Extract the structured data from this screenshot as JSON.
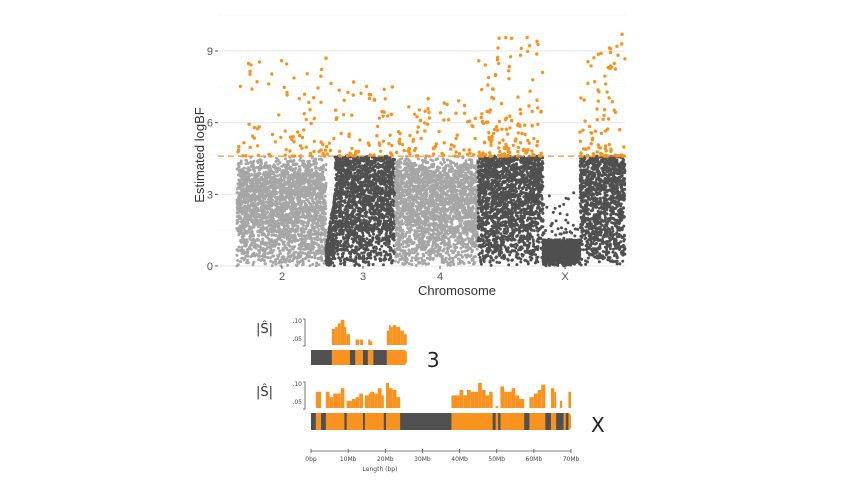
{
  "chart_data": [
    {
      "type": "scatter",
      "subtype": "manhattan",
      "xlabel": "Chromosome",
      "ylabel": "Estimated logBF",
      "ylim": [
        0,
        10
      ],
      "yticks": [
        0,
        3,
        6,
        9
      ],
      "grid": true,
      "threshold": 4.6,
      "colors": {
        "light": "#a6a6a6",
        "dark": "#505050",
        "significant": "#f7931e",
        "threshold_line": "#f7931e"
      },
      "chromosomes": [
        {
          "label": "2",
          "shade": "light",
          "max_logBF": 8.7
        },
        {
          "label": "3",
          "shade": "dark",
          "max_logBF": 7.7
        },
        {
          "label": "4",
          "shade": "light",
          "max_logBF": 7.0
        },
        {
          "label": "X",
          "shade": "dark",
          "max_logBF": 9.7
        }
      ]
    },
    {
      "type": "bar",
      "subtype": "chromosome-track",
      "xlabel": "Length (bp)",
      "ylabel": "|Ŝ|",
      "xlim_mb": [
        0,
        70
      ],
      "xticks": [
        "0bp",
        "10Mb",
        "20Mb",
        "30Mb",
        "40Mb",
        "50Mb",
        "60Mb",
        "70Mb"
      ],
      "ytick_labels": [
        ".10",
        ".05"
      ],
      "ylim": [
        0.03,
        0.105
      ],
      "colors": {
        "selected": "#f7931e",
        "not_selected": "#505050"
      },
      "tracks": [
        {
          "label": "3",
          "length_mb": 25.8,
          "dark_segments_mb": [
            [
              0,
              5.6
            ],
            [
              10.5,
              11.9
            ],
            [
              14,
              15.3
            ],
            [
              16.8,
              20.4
            ]
          ],
          "histogram": [
            [
              5.6,
              6.5,
              0.075
            ],
            [
              6.5,
              7.2,
              0.08
            ],
            [
              7.2,
              8,
              0.09
            ],
            [
              8,
              9,
              0.1
            ],
            [
              9,
              9.5,
              0.08
            ],
            [
              9.5,
              10.5,
              0.06
            ],
            [
              12,
              13,
              0.045
            ],
            [
              13.2,
              14,
              0.045
            ],
            [
              15.4,
              16,
              0.045
            ],
            [
              16,
              16.5,
              0.04
            ],
            [
              20.4,
              21,
              0.07
            ],
            [
              21,
              21.5,
              0.085
            ],
            [
              21.5,
              22,
              0.08
            ],
            [
              22,
              23,
              0.085
            ],
            [
              23,
              24,
              0.08
            ],
            [
              24,
              25,
              0.07
            ],
            [
              25,
              25.8,
              0.06
            ]
          ]
        },
        {
          "label": "X",
          "length_mb": 70,
          "dark_segments_mb": [
            [
              0,
              1.3
            ],
            [
              2.7,
              4
            ],
            [
              9,
              9.6
            ],
            [
              14,
              14.5
            ],
            [
              19.6,
              20.2
            ],
            [
              24,
              37.8
            ],
            [
              48.9,
              49.7
            ],
            [
              50.4,
              51
            ],
            [
              57.4,
              58.8
            ],
            [
              63.1,
              64.6
            ],
            [
              66,
              68
            ],
            [
              68.6,
              69.3
            ]
          ],
          "histogram": [
            [
              1.3,
              2.7,
              0.075
            ],
            [
              4,
              5,
              0.075
            ],
            [
              5,
              6,
              0.06
            ],
            [
              6,
              7,
              0.07
            ],
            [
              7,
              8,
              0.07
            ],
            [
              8,
              9,
              0.085
            ],
            [
              9.6,
              11,
              0.05
            ],
            [
              11,
              12,
              0.055
            ],
            [
              12,
              13,
              0.06
            ],
            [
              13,
              14,
              0.07
            ],
            [
              14.5,
              15.5,
              0.065
            ],
            [
              15.5,
              16,
              0.07
            ],
            [
              16,
              17,
              0.075
            ],
            [
              17,
              18,
              0.07
            ],
            [
              18,
              19,
              0.085
            ],
            [
              19,
              19.6,
              0.065
            ],
            [
              20.2,
              21,
              0.1
            ],
            [
              21,
              22,
              0.085
            ],
            [
              22,
              23,
              0.08
            ],
            [
              23,
              24,
              0.06
            ],
            [
              37.8,
              40,
              0.065
            ],
            [
              40,
              41,
              0.08
            ],
            [
              41,
              42,
              0.065
            ],
            [
              42,
              43,
              0.08
            ],
            [
              43,
              44,
              0.075
            ],
            [
              44,
              45,
              0.075
            ],
            [
              45,
              46,
              0.1
            ],
            [
              46,
              47,
              0.08
            ],
            [
              47,
              48,
              0.065
            ],
            [
              48,
              48.9,
              0.075
            ],
            [
              49.7,
              50.4,
              0.035
            ],
            [
              51,
              52,
              0.09
            ],
            [
              52,
              53,
              0.075
            ],
            [
              53,
              54,
              0.075
            ],
            [
              54,
              55,
              0.085
            ],
            [
              55,
              56,
              0.065
            ],
            [
              56,
              57.4,
              0.055
            ],
            [
              58.8,
              60,
              0.06
            ],
            [
              60,
              61,
              0.07
            ],
            [
              61,
              62,
              0.08
            ],
            [
              62,
              63.1,
              0.095
            ],
            [
              64.6,
              65.5,
              0.085
            ],
            [
              65.5,
              66,
              0.075
            ],
            [
              67,
              67.6,
              0.05
            ],
            [
              69.3,
              70,
              0.075
            ]
          ]
        }
      ]
    }
  ]
}
